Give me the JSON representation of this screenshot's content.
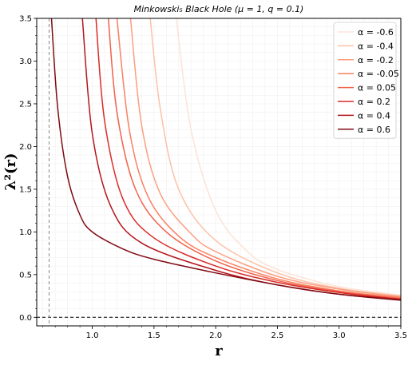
{
  "chart_data": {
    "type": "line",
    "title": "Minkowski₅ Black Hole (μ = 1,  q = 0.1)",
    "xlabel": "r",
    "ylabel": "λ²(r)",
    "xlim": [
      0.55,
      3.5
    ],
    "ylim": [
      -0.1,
      3.5
    ],
    "xticks": [
      "1.0",
      "1.5",
      "2.0",
      "2.5",
      "3.0",
      "3.5"
    ],
    "yticks": [
      "0.0",
      "0.5",
      "1.0",
      "1.5",
      "2.0",
      "2.5",
      "3.0",
      "3.5"
    ],
    "grid": true,
    "legend_position": "top-right",
    "reference_lines": [
      {
        "orientation": "horizontal",
        "value": 0.0,
        "style": "dashed",
        "color": "#000000"
      },
      {
        "orientation": "vertical",
        "value": 0.65,
        "style": "dashed",
        "color": "#888888"
      }
    ],
    "series": [
      {
        "name": "α = -0.6",
        "color": "#fde3d6",
        "x": [
          1.68,
          1.8,
          2.0,
          2.25,
          2.5,
          3.0,
          3.5
        ],
        "y": [
          3.5,
          2.2,
          1.25,
          0.78,
          0.56,
          0.36,
          0.26
        ]
      },
      {
        "name": "α = -0.4",
        "color": "#fcc1a7",
        "x": [
          1.47,
          1.55,
          1.7,
          2.0,
          2.5,
          3.0,
          3.5
        ],
        "y": [
          3.5,
          2.45,
          1.5,
          0.9,
          0.52,
          0.34,
          0.25
        ]
      },
      {
        "name": "α = -0.2",
        "color": "#fc9e7f",
        "x": [
          1.31,
          1.4,
          1.55,
          1.8,
          2.0,
          2.5,
          3.0,
          3.5
        ],
        "y": [
          3.5,
          2.25,
          1.45,
          0.98,
          0.77,
          0.48,
          0.33,
          0.24
        ]
      },
      {
        "name": "α = -0.05",
        "color": "#f88161",
        "x": [
          1.2,
          1.3,
          1.45,
          1.7,
          2.0,
          2.5,
          3.0,
          3.5
        ],
        "y": [
          3.5,
          2.2,
          1.42,
          0.95,
          0.7,
          0.45,
          0.31,
          0.23
        ]
      },
      {
        "name": "α = 0.05",
        "color": "#f0614a",
        "x": [
          1.13,
          1.2,
          1.35,
          1.6,
          2.0,
          2.5,
          3.0,
          3.5
        ],
        "y": [
          3.5,
          2.4,
          1.5,
          1.0,
          0.66,
          0.43,
          0.3,
          0.22
        ]
      },
      {
        "name": "α = 0.2",
        "color": "#d92b26",
        "x": [
          1.03,
          1.1,
          1.25,
          1.5,
          2.0,
          2.5,
          3.0,
          3.5
        ],
        "y": [
          3.5,
          2.3,
          1.38,
          0.93,
          0.6,
          0.41,
          0.29,
          0.21
        ]
      },
      {
        "name": "α = 0.4",
        "color": "#b4151b",
        "x": [
          0.92,
          1.0,
          1.15,
          1.4,
          2.0,
          2.5,
          3.0,
          3.5
        ],
        "y": [
          3.5,
          2.15,
          1.3,
          0.87,
          0.55,
          0.38,
          0.27,
          0.21
        ]
      },
      {
        "name": "α = 0.6",
        "color": "#7f0a12",
        "x": [
          0.67,
          0.72,
          0.8,
          0.9,
          1.0,
          1.25,
          1.5,
          2.0,
          2.5,
          3.0,
          3.5
        ],
        "y": [
          3.5,
          2.45,
          1.65,
          1.2,
          1.0,
          0.8,
          0.68,
          0.52,
          0.38,
          0.27,
          0.2
        ]
      }
    ]
  }
}
